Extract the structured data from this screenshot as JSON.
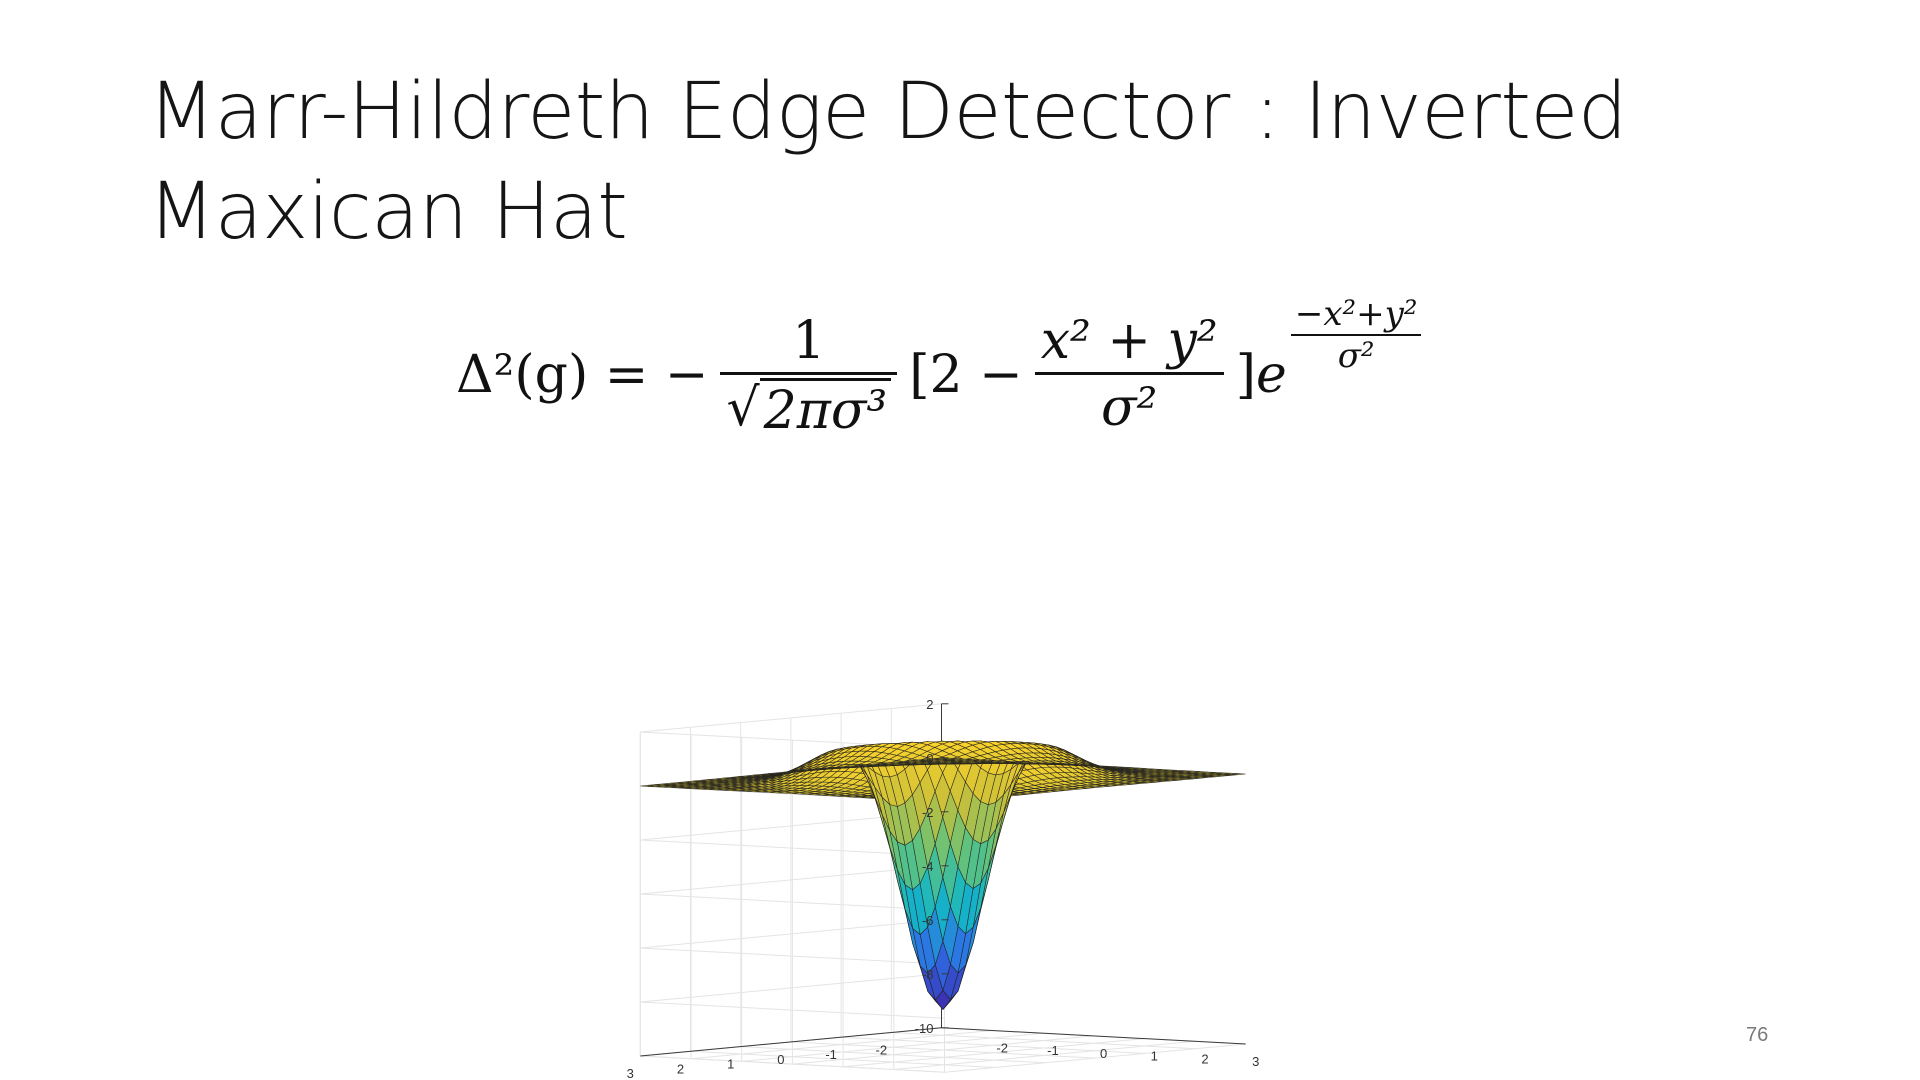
{
  "slide": {
    "title": "Marr-Hildreth Edge Detector : Inverted Maxican Hat",
    "page_number": "76"
  },
  "equation": {
    "lhs": "Δ²(g) = −",
    "frac1_num": "1",
    "frac1_den": "2πσ³",
    "bracket_open": "[2 −",
    "frac2_num": "x² + y²",
    "frac2_den": "σ²",
    "bracket_close": "]",
    "base": "e",
    "exp_sign": "−",
    "exp_num": "x²+y²",
    "exp_den": "σ²"
  },
  "chart_data": {
    "type": "surface",
    "title": "",
    "xlabel": "",
    "ylabel": "",
    "zlabel": "",
    "xlim": [
      -3,
      3
    ],
    "ylim": [
      -3,
      3
    ],
    "zlim": [
      -10,
      2
    ],
    "z_ticks": [
      "2",
      "0",
      "-2",
      "-4",
      "-6",
      "-8",
      "-10"
    ],
    "y_ticks_left": [
      "3",
      "2",
      "1",
      "0",
      "-1",
      "-2"
    ],
    "x_ticks_right": [
      "-2",
      "-1",
      "0",
      "1",
      "2",
      "3"
    ],
    "grid": true,
    "colormap": [
      "#3e26a8",
      "#2f6ee6",
      "#14b6c6",
      "#64c37a",
      "#c8bf3a",
      "#f9d22b"
    ],
    "surface_minimum_z": -8.5,
    "function": "inverted mexican hat"
  }
}
